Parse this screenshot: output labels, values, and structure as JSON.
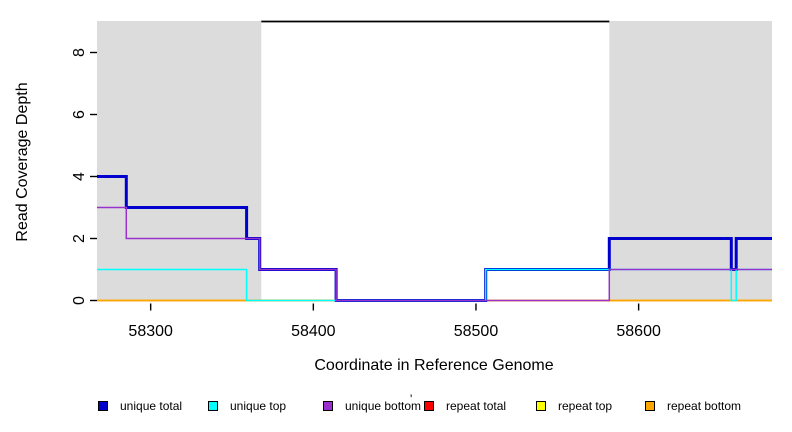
{
  "figure": {
    "title": "",
    "x_axis_label": "Coordinate in Reference Genome",
    "y_axis_label": "Read Coverage Depth"
  },
  "chart_data": {
    "type": "line",
    "subtype": "step-coverage",
    "xlabel": "Coordinate in Reference Genome",
    "ylabel": "Read Coverage Depth",
    "xlim": [
      58267,
      58682
    ],
    "ylim": [
      0,
      9.05
    ],
    "x_ticks": [
      58300,
      58400,
      58500,
      58600
    ],
    "y_ticks": [
      0,
      2,
      4,
      6,
      8
    ],
    "grid": false,
    "background_color": "#ffffff",
    "shaded_regions": [
      {
        "name": "left-gray-region",
        "x_start": 58267,
        "x_end": 58368,
        "color": "#DCDCDC"
      },
      {
        "name": "right-gray-region",
        "x_start": 58582,
        "x_end": 58682,
        "color": "#DCDCDC"
      }
    ],
    "unlabeled_black_segment": {
      "y": 9,
      "x_start": 58368,
      "x_end": 58582,
      "color": "#000000",
      "line_width": 1.7
    },
    "series": [
      {
        "name": "repeat total",
        "color": "#FF0000",
        "line_width": 1.5,
        "x_end": 58682,
        "steps": [
          [
            58267,
            0
          ]
        ]
      },
      {
        "name": "repeat top",
        "color": "#FFFF00",
        "line_width": 1.5,
        "x_end": 58682,
        "steps": [
          [
            58267,
            0
          ]
        ]
      },
      {
        "name": "repeat bottom",
        "color": "#FFA500",
        "line_width": 1.5,
        "x_end": 58682,
        "steps": [
          [
            58267,
            0
          ]
        ]
      },
      {
        "name": "unique total",
        "color": "#0000CD",
        "line_width": 3,
        "x_end": 58682,
        "steps": [
          [
            58267,
            4
          ],
          [
            58285,
            3
          ],
          [
            58359,
            2
          ],
          [
            58367,
            1
          ],
          [
            58414,
            0
          ],
          [
            58506,
            1
          ],
          [
            58582,
            2
          ],
          [
            58657,
            1
          ],
          [
            58660,
            2
          ]
        ]
      },
      {
        "name": "unique top",
        "color": "#00FFFF",
        "line_width": 1.5,
        "x_end": 58682,
        "steps": [
          [
            58267,
            1
          ],
          [
            58359,
            0
          ],
          [
            58506,
            1
          ],
          [
            58657,
            0
          ],
          [
            58660,
            1
          ]
        ]
      },
      {
        "name": "unique bottom",
        "color": "#9932CC",
        "line_width": 1.5,
        "x_end": 58682,
        "steps": [
          [
            58267,
            3
          ],
          [
            58285,
            2
          ],
          [
            58367,
            1
          ],
          [
            58414,
            0
          ],
          [
            58582,
            1
          ]
        ]
      }
    ],
    "legend_position": "bottom"
  },
  "legend": {
    "items": [
      {
        "label": "unique total",
        "color": "#0000CD"
      },
      {
        "label": "unique top",
        "color": "#00FFFF"
      },
      {
        "label": "unique bottom",
        "color": "#9932CC"
      },
      {
        "label": "repeat total",
        "color": "#FF0000"
      },
      {
        "label": "repeat top",
        "color": "#FFFF00"
      },
      {
        "label": "repeat bottom",
        "color": "#FFA500"
      }
    ],
    "stray_mark": "'"
  }
}
